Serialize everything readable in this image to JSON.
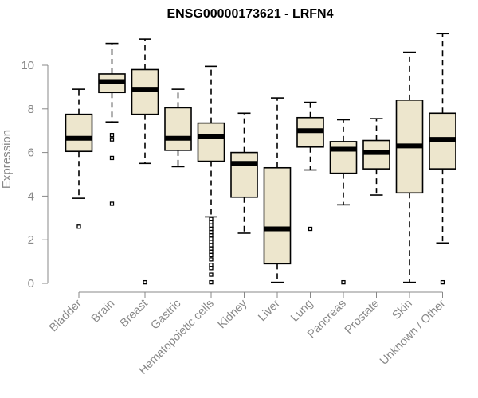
{
  "chart_data": {
    "type": "boxplot",
    "title": "ENSG00000173621 - LRFN4",
    "xlabel": "",
    "ylabel": "Expression",
    "ylim": [
      0,
      11.5
    ],
    "yticks": [
      "0",
      "2",
      "4",
      "6",
      "8",
      "10"
    ],
    "categories": [
      "Bladder",
      "Brain",
      "Breast",
      "Gastric",
      "Hematopoietic cells",
      "Kidney",
      "Liver",
      "Lung",
      "Pancreas",
      "Prostate",
      "Skin",
      "Unknown / Other"
    ],
    "box_color": "#ede6cd",
    "boxes": [
      {
        "whisker_low": 3.9,
        "q1": 6.05,
        "median": 6.65,
        "q3": 7.75,
        "whisker_high": 8.9,
        "outliers": [
          2.6
        ]
      },
      {
        "whisker_low": 7.4,
        "q1": 8.75,
        "median": 9.25,
        "q3": 9.6,
        "whisker_high": 11.0,
        "outliers": [
          6.8,
          6.6,
          5.75,
          3.65
        ]
      },
      {
        "whisker_low": 5.5,
        "q1": 7.75,
        "median": 8.9,
        "q3": 9.8,
        "whisker_high": 11.2,
        "outliers": [
          0.05
        ]
      },
      {
        "whisker_low": 5.35,
        "q1": 6.1,
        "median": 6.65,
        "q3": 8.05,
        "whisker_high": 8.9,
        "outliers": []
      },
      {
        "whisker_low": 3.05,
        "q1": 5.6,
        "median": 6.75,
        "q3": 7.35,
        "whisker_high": 9.95,
        "outliers": [
          2.95,
          2.8,
          2.65,
          2.5,
          2.35,
          2.2,
          2.05,
          1.9,
          1.75,
          1.6,
          1.45,
          1.3,
          1.1,
          0.85,
          0.7,
          0.4,
          0.05
        ]
      },
      {
        "whisker_low": 2.3,
        "q1": 3.95,
        "median": 5.5,
        "q3": 6.0,
        "whisker_high": 7.8,
        "outliers": []
      },
      {
        "whisker_low": 0.05,
        "q1": 0.9,
        "median": 2.5,
        "q3": 5.3,
        "whisker_high": 8.5,
        "outliers": []
      },
      {
        "whisker_low": 5.2,
        "q1": 6.25,
        "median": 7.0,
        "q3": 7.6,
        "whisker_high": 8.3,
        "outliers": [
          2.5
        ]
      },
      {
        "whisker_low": 3.6,
        "q1": 5.05,
        "median": 6.15,
        "q3": 6.5,
        "whisker_high": 7.5,
        "outliers": [
          0.05
        ]
      },
      {
        "whisker_low": 4.05,
        "q1": 5.25,
        "median": 6.0,
        "q3": 6.55,
        "whisker_high": 7.55,
        "outliers": []
      },
      {
        "whisker_low": 0.05,
        "q1": 4.15,
        "median": 6.3,
        "q3": 8.4,
        "whisker_high": 10.6,
        "outliers": []
      },
      {
        "whisker_low": 1.85,
        "q1": 5.25,
        "median": 6.6,
        "q3": 7.8,
        "whisker_high": 11.45,
        "outliers": [
          0.05
        ]
      }
    ]
  }
}
